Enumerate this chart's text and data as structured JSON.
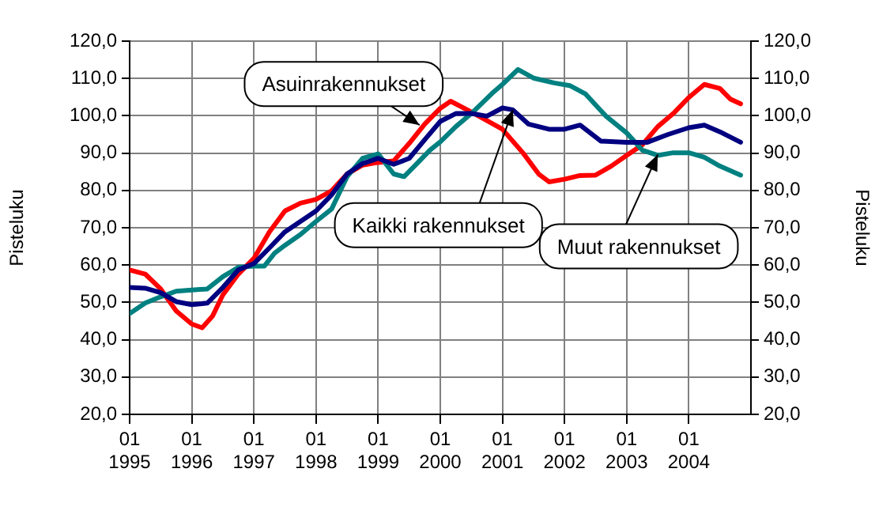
{
  "chart_data": {
    "type": "line",
    "ylabel": "Pisteluku",
    "y2label": "Pisteluku",
    "xlim": [
      "1995-01",
      "2005-01"
    ],
    "xticks": [
      {
        "value": "1995-01",
        "label": "01 1995"
      },
      {
        "value": "1996-01",
        "label": "01 1996"
      },
      {
        "value": "1997-01",
        "label": "01 1997"
      },
      {
        "value": "1998-01",
        "label": "01 1998"
      },
      {
        "value": "1999-01",
        "label": "01 1999"
      },
      {
        "value": "2000-01",
        "label": "01 2000"
      },
      {
        "value": "2001-01",
        "label": "01 2001"
      },
      {
        "value": "2002-01",
        "label": "01 2002"
      },
      {
        "value": "2003-01",
        "label": "01 2003"
      },
      {
        "value": "2004-01",
        "label": "01 2004"
      }
    ],
    "ylim": [
      20,
      120
    ],
    "yticks": [
      {
        "value": 20,
        "label": "20,0"
      },
      {
        "value": 30,
        "label": "30,0"
      },
      {
        "value": 40,
        "label": "40,0"
      },
      {
        "value": 50,
        "label": "50,0"
      },
      {
        "value": 60,
        "label": "60,0"
      },
      {
        "value": 70,
        "label": "70,0"
      },
      {
        "value": 80,
        "label": "80,0"
      },
      {
        "value": 90,
        "label": "90,0"
      },
      {
        "value": 100,
        "label": "100,0"
      },
      {
        "value": 110,
        "label": "110,0"
      },
      {
        "value": 120,
        "label": "120,0"
      }
    ],
    "y2lim": [
      20,
      120
    ],
    "y2ticks": [
      {
        "value": 20,
        "label": "20,0"
      },
      {
        "value": 30,
        "label": "30,0"
      },
      {
        "value": 40,
        "label": "40,0"
      },
      {
        "value": 50,
        "label": "50,0"
      },
      {
        "value": 60,
        "label": "60,0"
      },
      {
        "value": 70,
        "label": "70,0"
      },
      {
        "value": 80,
        "label": "80,0"
      },
      {
        "value": 90,
        "label": "90,0"
      },
      {
        "value": 100,
        "label": "100,0"
      },
      {
        "value": 110,
        "label": "110,0"
      },
      {
        "value": 120,
        "label": "120,0"
      }
    ],
    "grid": true,
    "legend": false,
    "marker": "none",
    "line_style": "solid",
    "series": [
      {
        "color": "#000080",
        "x": [
          "1995-01",
          "1995-04",
          "1995-07",
          "1995-10",
          "1996-01",
          "1996-04",
          "1996-07",
          "1996-10",
          "1997-01",
          "1997-04",
          "1997-07",
          "1997-10",
          "1998-01",
          "1998-04",
          "1998-07",
          "1998-10",
          "1999-01",
          "1999-04",
          "1999-07",
          "1999-10",
          "2000-01",
          "2000-04",
          "2000-07",
          "2000-10",
          "2001-01",
          "2001-03",
          "2001-06",
          "2001-10",
          "2002-01",
          "2002-04",
          "2002-08",
          "2003-01",
          "2003-05",
          "2003-09",
          "2004-01",
          "2004-04",
          "2004-07",
          "2004-11"
        ],
        "values": [
          54,
          53.8,
          52.6,
          50.2,
          49.4,
          49.8,
          54,
          58.7,
          60.4,
          64.6,
          68.9,
          71.7,
          74.5,
          78.8,
          84.4,
          87.2,
          88.6,
          87,
          88.6,
          93.6,
          98.5,
          100.6,
          100.6,
          99.9,
          102.1,
          101.6,
          97.8,
          96.4,
          96.4,
          97.5,
          93.2,
          92.9,
          92.9,
          95,
          96.8,
          97.5,
          95.7,
          92.9
        ]
      },
      {
        "color": "#008080",
        "x": [
          "1995-01",
          "1995-04",
          "1995-07",
          "1995-10",
          "1996-01",
          "1996-04",
          "1996-07",
          "1996-10",
          "1997-01",
          "1997-03",
          "1997-05",
          "1997-07",
          "1997-10",
          "1998-01",
          "1998-04",
          "1998-07",
          "1998-10",
          "1999-01",
          "1999-04",
          "1999-06",
          "1999-08",
          "1999-11",
          "2000-01",
          "2000-04",
          "2000-07",
          "2000-11",
          "2001-01",
          "2001-04",
          "2001-07",
          "2001-11",
          "2002-02",
          "2002-05",
          "2002-09",
          "2003-01",
          "2003-04",
          "2003-07",
          "2003-10",
          "2004-01",
          "2004-04",
          "2004-07",
          "2004-11"
        ],
        "values": [
          47,
          49.8,
          51.5,
          53,
          53.3,
          53.6,
          56.9,
          59.4,
          59.7,
          59.7,
          63.2,
          65.3,
          68.2,
          71.7,
          75,
          83.7,
          88.6,
          89.8,
          84.4,
          83.7,
          86.5,
          90.8,
          93,
          97.1,
          100.6,
          106,
          108.4,
          112.4,
          110.1,
          108.8,
          108.1,
          105.9,
          99.9,
          95.4,
          90.8,
          89.4,
          90.1,
          90.1,
          88.9,
          86.5,
          84.1
        ]
      },
      {
        "color": "#ff0000",
        "x": [
          "1995-01",
          "1995-04",
          "1995-07",
          "1995-10",
          "1996-01",
          "1996-03",
          "1996-05",
          "1996-07",
          "1996-10",
          "1997-01",
          "1997-04",
          "1997-07",
          "1997-10",
          "1998-01",
          "1998-04",
          "1998-07",
          "1998-10",
          "1999-01",
          "1999-04",
          "1999-07",
          "1999-10",
          "2000-01",
          "2000-03",
          "2000-07",
          "2001-01",
          "2001-05",
          "2001-08",
          "2001-10",
          "2002-01",
          "2002-04",
          "2002-07",
          "2002-10",
          "2003-01",
          "2003-04",
          "2003-07",
          "2003-10",
          "2004-01",
          "2004-04",
          "2004-07",
          "2004-09",
          "2004-11"
        ],
        "values": [
          58.7,
          57.6,
          53.6,
          47.7,
          44.2,
          43.2,
          46.3,
          52,
          57.6,
          61.8,
          68.9,
          74.5,
          76.6,
          77.6,
          79.9,
          84.4,
          86.8,
          87.5,
          87.9,
          92.6,
          97.8,
          102,
          103.9,
          101,
          96.4,
          90,
          84.4,
          82.3,
          83,
          84,
          84.1,
          86.5,
          89.4,
          92.2,
          97.1,
          100.6,
          104.9,
          108.4,
          107.3,
          104.5,
          103.2
        ]
      }
    ],
    "annotations": [
      {
        "text": "Asuinrakennukset",
        "x": "1999-09",
        "y": 97.5
      },
      {
        "text": "Kaikki rakennukset",
        "x": "2001-03",
        "y": 101.6
      },
      {
        "text": "Muut rakennukset",
        "x": "2003-07",
        "y": 89.6
      }
    ]
  }
}
